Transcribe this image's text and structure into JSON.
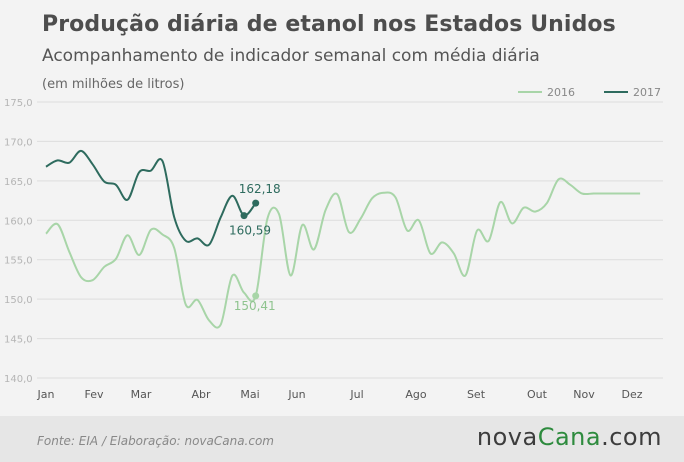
{
  "header": {
    "title": "Produção diária de etanol nos Estados Unidos",
    "subtitle": "Acompanhamento de indicador semanal com média diária",
    "unit": "(em milhões de litros)"
  },
  "footer": {
    "source": "Fonte:  EIA  / Elaboração:  novaCana.com",
    "brand_part1": "nova",
    "brand_part2": "Cana",
    "brand_part3": ".com"
  },
  "colors": {
    "series_2016": "#a8d5a8",
    "series_2017": "#2e6b5e",
    "grid": "#dddddd",
    "brand_green": "#2e8b3e"
  },
  "chart_data": {
    "type": "line",
    "xlabel": "",
    "ylabel": "",
    "ylim": [
      140,
      175
    ],
    "yticks": [
      "140,0",
      "145,0",
      "150,0",
      "155,0",
      "160,0",
      "165,0",
      "170,0",
      "175,0"
    ],
    "x_ticks": [
      "Jan",
      "Fev",
      "Mar",
      "Abr",
      "Mai",
      "Jun",
      "Jul",
      "Ago",
      "Set",
      "Out",
      "Nov",
      "Dez"
    ],
    "x_unit": "week of year",
    "legend_position": "top-right",
    "grid": "horizontal",
    "series": [
      {
        "name": "2016",
        "week": [
          1,
          2,
          3,
          4,
          5,
          6,
          7,
          8,
          9,
          10,
          11,
          12,
          13,
          14,
          15,
          16,
          17,
          18,
          19,
          20,
          21,
          22,
          23,
          24,
          25,
          26,
          27,
          28,
          29,
          30,
          31,
          32,
          33,
          34,
          35,
          36,
          37,
          38,
          39,
          40,
          41,
          42,
          43,
          44,
          45,
          46,
          47,
          48,
          49,
          50,
          51,
          52
        ],
        "values": [
          158.3,
          159.5,
          156.0,
          152.8,
          152.4,
          154.1,
          155.1,
          158.1,
          155.6,
          158.8,
          158.2,
          156.5,
          149.3,
          149.9,
          147.3,
          146.8,
          153.0,
          150.8,
          150.41,
          160.2,
          160.8,
          153.0,
          159.4,
          156.3,
          161.3,
          163.3,
          158.5,
          160.2,
          162.8,
          163.5,
          162.9,
          158.7,
          160.0,
          155.8,
          157.2,
          155.8,
          153.0,
          158.7,
          157.4,
          162.3,
          159.6,
          161.6,
          161.1,
          162.2,
          165.2,
          164.5,
          163.4,
          163.4,
          163.4,
          163.4,
          163.4,
          163.4
        ],
        "color": "#a8d5a8",
        "labels": [
          {
            "week": 19,
            "value": 150.41,
            "text": "150,41"
          }
        ]
      },
      {
        "name": "2017",
        "week": [
          1,
          2,
          3,
          4,
          5,
          6,
          7,
          8,
          9,
          10,
          11,
          12,
          13,
          14,
          15,
          16,
          17,
          18,
          19
        ],
        "values": [
          166.8,
          167.6,
          167.3,
          168.8,
          167.1,
          164.9,
          164.5,
          162.6,
          166.1,
          166.3,
          167.5,
          160.4,
          157.4,
          157.7,
          156.9,
          160.4,
          163.1,
          160.59,
          162.18
        ],
        "color": "#2e6b5e",
        "labels": [
          {
            "week": 18,
            "value": 160.59,
            "text": "160,59"
          },
          {
            "week": 19,
            "value": 162.18,
            "text": "162,18"
          }
        ]
      }
    ]
  }
}
